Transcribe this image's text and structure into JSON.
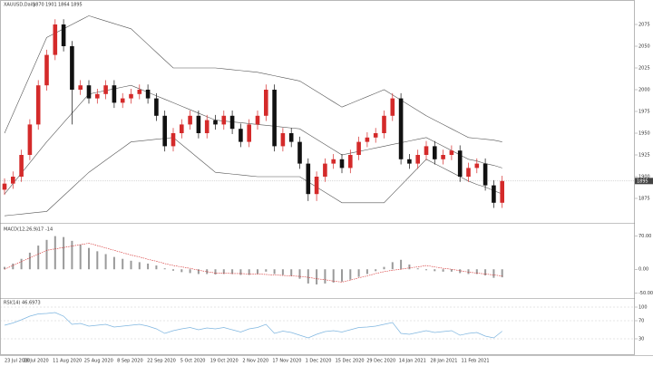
{
  "chart_data": {
    "type": "candlestick",
    "title": "XAUUSD,Daily",
    "up_color": "#d42a2a",
    "down_color": "#111111",
    "ylim": [
      1850,
      2100
    ],
    "yticks": [
      1875,
      1900,
      1925,
      1950,
      1975,
      2000,
      2025,
      2050,
      2075
    ],
    "dates": [
      "23 Jul 2020",
      "28 Jul 2020",
      "11 Aug 2020",
      "25 Aug 2020",
      "8 Sep 2020",
      "22 Sep 2020",
      "5 Oct 2020",
      "19 Oct 2020",
      "2 Nov 2020",
      "17 Nov 2020",
      "1 Dec 2020",
      "15 Dec 2020",
      "29 Dec 2020",
      "14 Jan 2021",
      "28 Jan 2021",
      "11 Feb 2021"
    ],
    "candles": {
      "open": [
        1885,
        1892,
        1900,
        1925,
        1960,
        2005,
        2040,
        2075,
        2050,
        2000,
        2005,
        1990,
        1995,
        2005,
        1985,
        1990,
        1995,
        2000,
        1990,
        1970,
        1935,
        1950,
        1960,
        1970,
        1950,
        1965,
        1960,
        1970,
        1955,
        1940,
        1960,
        1970,
        2000,
        1935,
        1950,
        1940,
        1915,
        1880,
        1900,
        1915,
        1920,
        1910,
        1925,
        1940,
        1945,
        1950,
        1970,
        1990,
        1920,
        1915,
        1925,
        1935,
        1920,
        1925,
        1930,
        1900,
        1910,
        1915,
        1890,
        1870
      ],
      "high": [
        1898,
        1906,
        1931,
        1966,
        2011,
        2046,
        2081,
        2081,
        2056,
        2011,
        2011,
        2001,
        2011,
        2011,
        1996,
        2001,
        2006,
        2006,
        1996,
        1976,
        1956,
        1966,
        1976,
        1976,
        1971,
        1971,
        1976,
        1976,
        1961,
        1966,
        1976,
        2006,
        2006,
        1956,
        1956,
        1946,
        1921,
        1906,
        1921,
        1926,
        1926,
        1931,
        1946,
        1951,
        1956,
        1976,
        1996,
        1996,
        1926,
        1931,
        1941,
        1941,
        1931,
        1936,
        1936,
        1916,
        1921,
        1921,
        1896,
        1901
      ],
      "low": [
        1879,
        1886,
        1894,
        1919,
        1954,
        1999,
        2034,
        2044,
        1960,
        1994,
        1984,
        1984,
        1989,
        1979,
        1979,
        1984,
        1989,
        1984,
        1964,
        1929,
        1929,
        1944,
        1954,
        1944,
        1944,
        1954,
        1954,
        1949,
        1934,
        1934,
        1954,
        1964,
        1929,
        1929,
        1934,
        1909,
        1872,
        1872,
        1894,
        1909,
        1904,
        1904,
        1919,
        1934,
        1939,
        1944,
        1964,
        1914,
        1909,
        1909,
        1919,
        1914,
        1914,
        1919,
        1894,
        1894,
        1904,
        1884,
        1864,
        1864
      ],
      "close": [
        1892,
        1900,
        1925,
        1960,
        2005,
        2040,
        2075,
        2050,
        2000,
        2005,
        1990,
        1995,
        2005,
        1985,
        1990,
        1995,
        2000,
        1990,
        1970,
        1935,
        1950,
        1960,
        1970,
        1950,
        1965,
        1960,
        1970,
        1955,
        1940,
        1960,
        1970,
        2000,
        1935,
        1950,
        1940,
        1915,
        1880,
        1900,
        1915,
        1920,
        1910,
        1925,
        1940,
        1945,
        1950,
        1970,
        1990,
        1920,
        1915,
        1925,
        1935,
        1920,
        1925,
        1930,
        1900,
        1910,
        1915,
        1890,
        1870,
        1895
      ]
    },
    "bollinger": {
      "color": "#555555",
      "upper": [
        1950,
        1972,
        1994,
        2016,
        2038,
        2060,
        2065,
        2070,
        2075,
        2080,
        2085,
        2082,
        2079,
        2076,
        2073,
        2070,
        2061,
        2052,
        2043,
        2034,
        2025,
        2025,
        2025,
        2025,
        2025,
        2025,
        2024,
        2023,
        2022,
        2021,
        2020,
        2018,
        2016,
        2014,
        2012,
        2010,
        2004,
        1998,
        1992,
        1986,
        1980,
        1984,
        1988,
        1992,
        1996,
        2000,
        1994,
        1988,
        1982,
        1976,
        1970,
        1965,
        1960,
        1955,
        1950,
        1945,
        1944,
        1943,
        1942,
        1940
      ],
      "middle": [
        1880,
        1892,
        1904,
        1916,
        1928,
        1940,
        1951,
        1962,
        1973,
        1984,
        1995,
        1997,
        1999,
        2001,
        2003,
        2005,
        2001,
        1997,
        1993,
        1989,
        1985,
        1981,
        1977,
        1973,
        1969,
        1965,
        1964,
        1963,
        1962,
        1961,
        1960,
        1959,
        1958,
        1957,
        1956,
        1955,
        1949,
        1943,
        1937,
        1931,
        1925,
        1927,
        1929,
        1931,
        1933,
        1935,
        1937,
        1939,
        1941,
        1943,
        1945,
        1940,
        1935,
        1930,
        1925,
        1920,
        1918,
        1915,
        1913,
        1910
      ],
      "lower": [
        1855,
        1856,
        1857,
        1858,
        1859,
        1860,
        1869,
        1878,
        1887,
        1896,
        1905,
        1912,
        1919,
        1926,
        1933,
        1940,
        1941,
        1942,
        1943,
        1944,
        1945,
        1937,
        1929,
        1921,
        1913,
        1905,
        1904,
        1903,
        1902,
        1901,
        1900,
        1900,
        1900,
        1900,
        1900,
        1900,
        1894,
        1888,
        1882,
        1876,
        1870,
        1870,
        1870,
        1870,
        1870,
        1870,
        1880,
        1890,
        1900,
        1910,
        1920,
        1915,
        1910,
        1905,
        1900,
        1895,
        1891,
        1888,
        1884,
        1880
      ]
    },
    "macd": {
      "title": "MACD(12,26,9)",
      "color": "#9a9a9a",
      "signal_color": "#d42a2a",
      "ylim": [
        -55,
        75
      ],
      "yticks": [
        {
          "value": 70,
          "label": "70.00"
        },
        {
          "value": 0,
          "label": "0.00"
        },
        {
          "value": -50,
          "label": "-50.00"
        }
      ],
      "values": [
        5,
        12,
        22,
        35,
        50,
        62,
        70,
        68,
        60,
        52,
        45,
        38,
        32,
        26,
        22,
        18,
        15,
        12,
        8,
        2,
        -3,
        -6,
        -8,
        -10,
        -10,
        -11,
        -10,
        -10,
        -12,
        -12,
        -10,
        -5,
        -10,
        -12,
        -14,
        -20,
        -30,
        -32,
        -30,
        -28,
        -26,
        -22,
        -16,
        -10,
        -4,
        5,
        15,
        20,
        10,
        2,
        -2,
        -4,
        -5,
        -5,
        -8,
        -10,
        -10,
        -13,
        -18,
        -17
      ],
      "signal": [
        0,
        8,
        16,
        24,
        32,
        40,
        43,
        46,
        49,
        52,
        55,
        50,
        45,
        40,
        35,
        30,
        26,
        21,
        17,
        12,
        8,
        5,
        2,
        -2,
        -5,
        -8,
        -8,
        -9,
        -9,
        -10,
        -10,
        -11,
        -12,
        -13,
        -14,
        -15,
        -17,
        -20,
        -22,
        -25,
        -27,
        -23,
        -18,
        -14,
        -9,
        -5,
        -2,
        0,
        3,
        5,
        8,
        5,
        2,
        0,
        -3,
        -6,
        -8,
        -10,
        -12,
        -14
      ]
    },
    "rsi": {
      "title": "RSI(14)",
      "color": "#7fb6e0",
      "ylim": [
        0,
        100
      ],
      "yticks": [
        100,
        70,
        30
      ],
      "values": [
        60,
        65,
        72,
        80,
        85,
        86,
        88,
        80,
        62,
        64,
        58,
        60,
        62,
        56,
        58,
        60,
        62,
        58,
        52,
        42,
        48,
        52,
        55,
        50,
        54,
        52,
        55,
        50,
        45,
        52,
        55,
        62,
        42,
        47,
        44,
        38,
        32,
        40,
        46,
        48,
        45,
        50,
        55,
        56,
        58,
        62,
        66,
        42,
        40,
        44,
        48,
        44,
        46,
        48,
        38,
        42,
        44,
        36,
        32,
        46.6973
      ]
    }
  }
}
